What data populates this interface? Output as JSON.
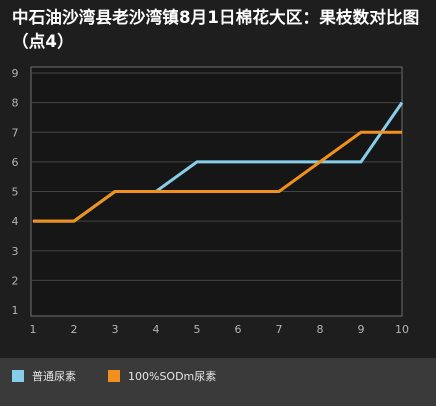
{
  "chart_data": {
    "type": "line",
    "title": "中石油沙湾县老沙湾镇8月1日棉花大区：果枝数对比图（点4）",
    "categories": [
      "1",
      "2",
      "3",
      "4",
      "5",
      "6",
      "7",
      "8",
      "9",
      "10"
    ],
    "y_ticks": [
      "1",
      "2",
      "3",
      "4",
      "5",
      "6",
      "7",
      "8",
      "9"
    ],
    "ylim": [
      1,
      9
    ],
    "grid": true,
    "legend_position": "bottom",
    "series": [
      {
        "name": "普通尿素",
        "color": "#87ceeb",
        "values": [
          4,
          4,
          5,
          5,
          6,
          6,
          6,
          6,
          6,
          8
        ]
      },
      {
        "name": "100%SODm尿素",
        "color": "#f0901e",
        "values": [
          4,
          4,
          5,
          5,
          5,
          5,
          5,
          6,
          7,
          7
        ]
      }
    ]
  }
}
